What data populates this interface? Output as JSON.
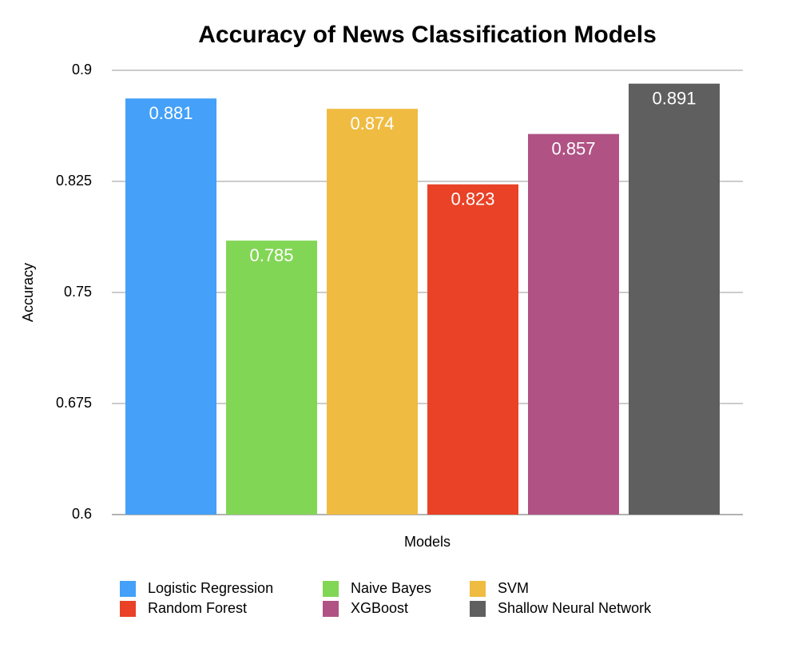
{
  "chart_data": {
    "type": "bar",
    "title": "Accuracy of News Classification Models",
    "x_label": "Models",
    "y_label": "Accuracy",
    "series": [
      {
        "name": "Logistic Regression",
        "color": "#44a0f8",
        "values": [
          0.881
        ]
      },
      {
        "name": "Naive Bayes",
        "color": "#82d655",
        "values": [
          0.785
        ]
      },
      {
        "name": "SVM",
        "color": "#efbb41",
        "values": [
          0.874
        ]
      },
      {
        "name": "Random Forest",
        "color": "#e94227",
        "values": [
          0.823
        ]
      },
      {
        "name": "XGBoost",
        "color": "#b05284",
        "values": [
          0.857
        ]
      },
      {
        "name": "Shallow Neural Network",
        "color": "#5f5f5f",
        "values": [
          0.891
        ]
      }
    ],
    "ylim": [
      0.6,
      0.9
    ],
    "yticks": [
      0.6,
      0.675,
      0.75,
      0.825,
      0.9
    ],
    "grid": true,
    "legend": "bottom"
  }
}
